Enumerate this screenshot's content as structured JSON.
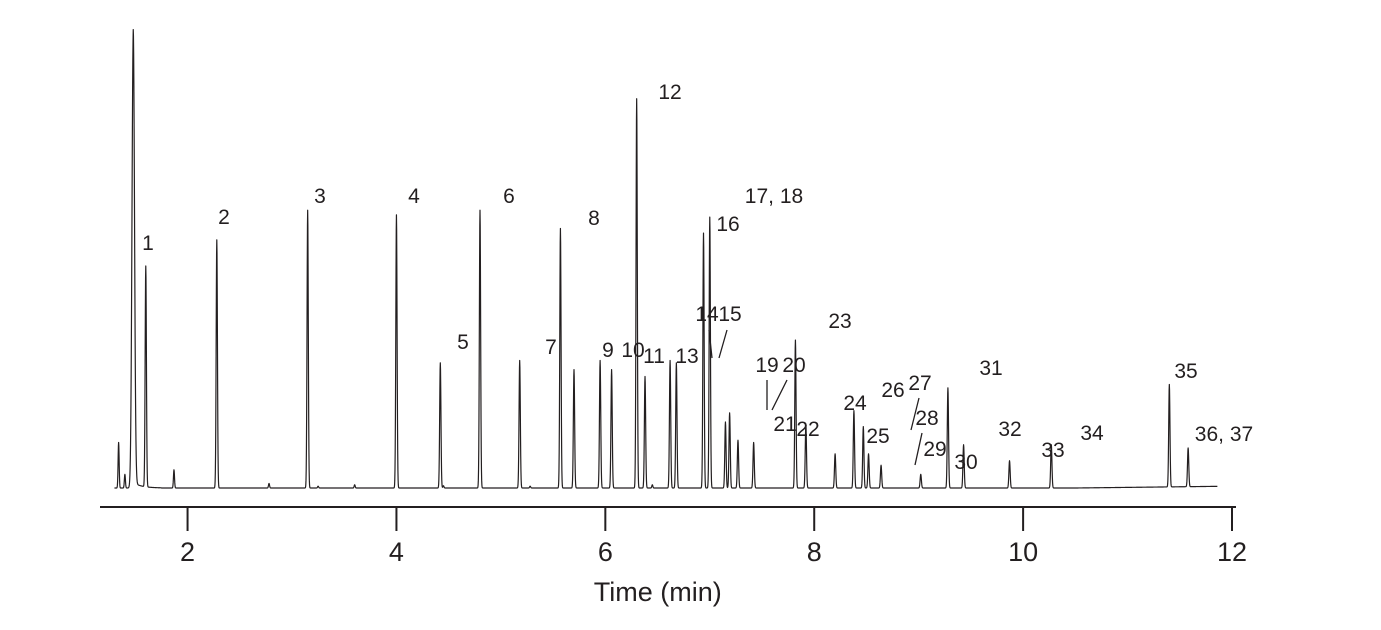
{
  "chart_data": {
    "type": "line",
    "title": "",
    "xlabel": "Time (min)",
    "ylabel": "",
    "xlim": [
      1.2,
      12.0
    ],
    "ylim": [
      0,
      100
    ],
    "x_ticks": [
      2,
      4,
      6,
      8,
      10,
      12
    ],
    "x_tick_labels": [
      "2",
      "4",
      "6",
      "8",
      "10",
      "12"
    ],
    "grid": false,
    "legend": "none",
    "baseline": 0.5,
    "solvent_peak": {
      "x": 1.48,
      "y": 100
    },
    "minor_peaks": [
      {
        "x": 1.34,
        "y": 10.5
      },
      {
        "x": 1.4,
        "y": 3.5
      },
      {
        "x": 1.87,
        "y": 4.5
      },
      {
        "x": 2.78,
        "y": 1.5
      },
      {
        "x": 3.25,
        "y": 0.9
      },
      {
        "x": 3.6,
        "y": 1.2
      },
      {
        "x": 4.45,
        "y": 1.0
      },
      {
        "x": 5.28,
        "y": 0.9
      },
      {
        "x": 6.45,
        "y": 1.2
      }
    ],
    "peaks": [
      {
        "label": "1",
        "x": 1.6,
        "y": 49
      },
      {
        "label": "2",
        "x": 2.28,
        "y": 55
      },
      {
        "label": "3",
        "x": 3.15,
        "y": 61.5
      },
      {
        "label": "4",
        "x": 4.0,
        "y": 60.5
      },
      {
        "label": "5",
        "x": 4.42,
        "y": 28
      },
      {
        "label": "6",
        "x": 4.8,
        "y": 61.5
      },
      {
        "label": "7",
        "x": 5.18,
        "y": 28.5
      },
      {
        "label": "8",
        "x": 5.57,
        "y": 57.5
      },
      {
        "label": "9",
        "x": 5.7,
        "y": 26.5
      },
      {
        "label": "10",
        "x": 5.95,
        "y": 28.5
      },
      {
        "label": "11",
        "x": 6.06,
        "y": 26.5
      },
      {
        "label": "12",
        "x": 6.3,
        "y": 86
      },
      {
        "label": "13",
        "x": 6.38,
        "y": 25
      },
      {
        "label": "14",
        "x": 6.62,
        "y": 28.5
      },
      {
        "label": "15",
        "x": 6.68,
        "y": 28
      },
      {
        "label": "16",
        "x": 6.94,
        "y": 56.5
      },
      {
        "label": "17, 18",
        "x": 7.0,
        "y": 60
      },
      {
        "label": "19",
        "x": 7.15,
        "y": 15
      },
      {
        "label": "20",
        "x": 7.19,
        "y": 17
      },
      {
        "label": "21",
        "x": 7.27,
        "y": 11
      },
      {
        "label": "22",
        "x": 7.42,
        "y": 10.5
      },
      {
        "label": "23",
        "x": 7.82,
        "y": 33
      },
      {
        "label": "24",
        "x": 7.92,
        "y": 14.5
      },
      {
        "label": "25",
        "x": 8.2,
        "y": 8
      },
      {
        "label": "26",
        "x": 8.38,
        "y": 17.5
      },
      {
        "label": "27",
        "x": 8.47,
        "y": 14
      },
      {
        "label": "28",
        "x": 8.52,
        "y": 8
      },
      {
        "label": "29",
        "x": 8.64,
        "y": 5.5
      },
      {
        "label": "30",
        "x": 9.02,
        "y": 3.5
      },
      {
        "label": "31",
        "x": 9.28,
        "y": 22.5
      },
      {
        "label": "32",
        "x": 9.43,
        "y": 10
      },
      {
        "label": "33",
        "x": 9.87,
        "y": 6.5
      },
      {
        "label": "34",
        "x": 10.27,
        "y": 10
      },
      {
        "label": "35",
        "x": 11.4,
        "y": 23
      },
      {
        "label": "36, 37",
        "x": 11.58,
        "y": 9
      }
    ]
  }
}
